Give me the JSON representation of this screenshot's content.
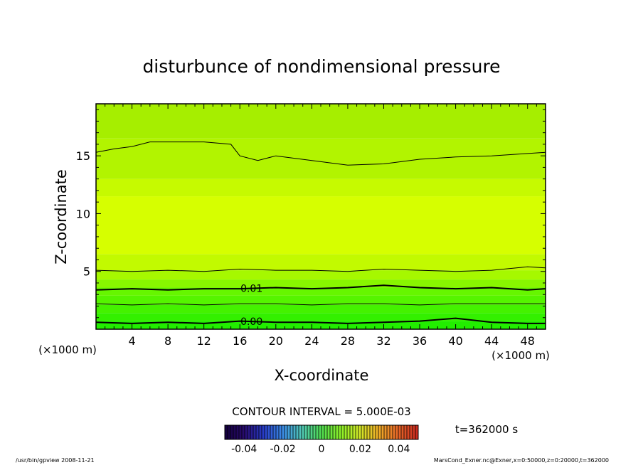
{
  "chart_data": {
    "type": "heatmap",
    "title": "disturbunce of nondimensional pressure",
    "xlabel": "X-coordinate",
    "ylabel": "Z-coordinate",
    "x_unit": "(×1000 m)",
    "y_unit": "(×1000 m)",
    "xlim": [
      0,
      50
    ],
    "ylim": [
      0,
      19.5
    ],
    "x_ticks": [
      "4",
      "8",
      "12",
      "16",
      "20",
      "24",
      "28",
      "32",
      "36",
      "40",
      "44",
      "48"
    ],
    "x_tick_values": [
      4,
      8,
      12,
      16,
      20,
      24,
      28,
      32,
      36,
      40,
      44,
      48
    ],
    "y_ticks": [
      "5",
      "10",
      "15"
    ],
    "y_tick_values": [
      5,
      10,
      15
    ],
    "contour_interval": "CONTOUR INTERVAL = 5.000E-03",
    "time_label": "t=362000 s",
    "colorbar": {
      "labels": [
        "-0.04",
        "-0.02",
        "0",
        "0.02",
        "0.04"
      ],
      "values": [
        -0.04,
        -0.02,
        0,
        0.02,
        0.04
      ],
      "range": [
        -0.05,
        0.05
      ]
    },
    "value_bands": [
      {
        "z0": 0.0,
        "z1": 0.7,
        "color": "#22ee00"
      },
      {
        "z0": 0.7,
        "z1": 1.4,
        "color": "#33f000"
      },
      {
        "z0": 1.4,
        "z1": 2.1,
        "color": "#44f200"
      },
      {
        "z0": 2.1,
        "z1": 2.9,
        "color": "#55f400"
      },
      {
        "z0": 2.9,
        "z1": 3.6,
        "color": "#66f600"
      },
      {
        "z0": 3.6,
        "z1": 4.3,
        "color": "#88f600"
      },
      {
        "z0": 4.3,
        "z1": 5.1,
        "color": "#a6f800"
      },
      {
        "z0": 5.1,
        "z1": 6.5,
        "color": "#c2fa00"
      },
      {
        "z0": 6.5,
        "z1": 11.5,
        "color": "#d6ff00"
      },
      {
        "z0": 11.5,
        "z1": 13.0,
        "color": "#c6fa00"
      },
      {
        "z0": 13.0,
        "z1": 16.5,
        "color": "#b2f400"
      },
      {
        "z0": 16.5,
        "z1": 19.5,
        "color": "#a6ee00"
      }
    ],
    "contours": [
      {
        "label": "0.00",
        "bold": true,
        "points": [
          [
            0,
            0.6
          ],
          [
            4,
            0.5
          ],
          [
            8,
            0.6
          ],
          [
            12,
            0.5
          ],
          [
            16,
            0.7
          ],
          [
            20,
            0.6
          ],
          [
            24,
            0.6
          ],
          [
            28,
            0.5
          ],
          [
            32,
            0.6
          ],
          [
            36,
            0.7
          ],
          [
            40,
            0.95
          ],
          [
            44,
            0.6
          ],
          [
            48,
            0.5
          ],
          [
            50,
            0.5
          ]
        ]
      },
      {
        "label": "",
        "bold": false,
        "points": [
          [
            0,
            2.2
          ],
          [
            4,
            2.1
          ],
          [
            8,
            2.2
          ],
          [
            12,
            2.1
          ],
          [
            16,
            2.2
          ],
          [
            20,
            2.2
          ],
          [
            24,
            2.1
          ],
          [
            28,
            2.2
          ],
          [
            32,
            2.2
          ],
          [
            36,
            2.1
          ],
          [
            40,
            2.2
          ],
          [
            44,
            2.2
          ],
          [
            48,
            2.2
          ],
          [
            50,
            2.2
          ]
        ]
      },
      {
        "label": "0.01",
        "bold": true,
        "points": [
          [
            0,
            3.4
          ],
          [
            4,
            3.5
          ],
          [
            8,
            3.4
          ],
          [
            12,
            3.5
          ],
          [
            16,
            3.5
          ],
          [
            20,
            3.6
          ],
          [
            24,
            3.5
          ],
          [
            28,
            3.6
          ],
          [
            32,
            3.8
          ],
          [
            36,
            3.6
          ],
          [
            40,
            3.5
          ],
          [
            44,
            3.6
          ],
          [
            48,
            3.4
          ],
          [
            50,
            3.5
          ]
        ]
      },
      {
        "label": "",
        "bold": false,
        "points": [
          [
            0,
            5.1
          ],
          [
            4,
            5.0
          ],
          [
            8,
            5.1
          ],
          [
            12,
            5.0
          ],
          [
            16,
            5.2
          ],
          [
            20,
            5.1
          ],
          [
            24,
            5.1
          ],
          [
            28,
            5.0
          ],
          [
            32,
            5.2
          ],
          [
            36,
            5.1
          ],
          [
            40,
            5.0
          ],
          [
            44,
            5.1
          ],
          [
            48,
            5.4
          ],
          [
            50,
            5.3
          ]
        ]
      },
      {
        "label": "",
        "bold": false,
        "points": [
          [
            0,
            15.3
          ],
          [
            2,
            15.6
          ],
          [
            4,
            15.8
          ],
          [
            6,
            16.2
          ],
          [
            8,
            16.2
          ],
          [
            12,
            16.2
          ],
          [
            15,
            16.0
          ],
          [
            16,
            15.0
          ],
          [
            18,
            14.6
          ],
          [
            20,
            15.0
          ],
          [
            24,
            14.6
          ],
          [
            28,
            14.2
          ],
          [
            32,
            14.3
          ],
          [
            36,
            14.7
          ],
          [
            40,
            14.9
          ],
          [
            44,
            15.0
          ],
          [
            48,
            15.2
          ],
          [
            50,
            15.3
          ]
        ]
      }
    ]
  },
  "footer": {
    "left": "/usr/bin/gpview   2008-11-21",
    "right": "MarsCond_Exner.nc@Exner,x=0:50000,z=0:20000,t=362000"
  }
}
